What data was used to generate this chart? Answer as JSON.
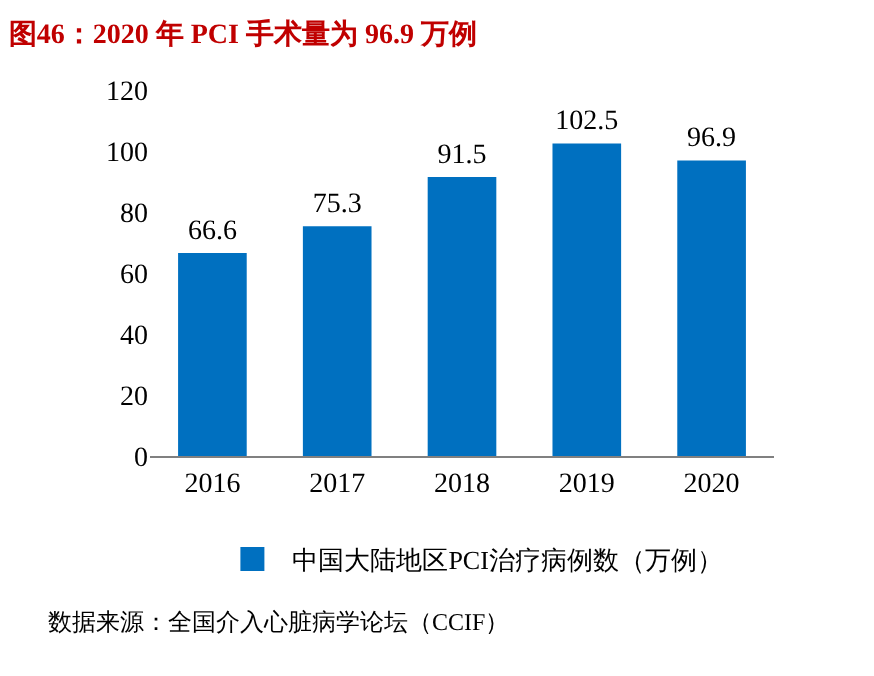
{
  "chart_data": {
    "type": "bar",
    "title": "图46：2020 年 PCI 手术量为 96.9 万例",
    "categories": [
      "2016",
      "2017",
      "2018",
      "2019",
      "2020"
    ],
    "series": [
      {
        "name": "中国大陆地区PCI治疗病例数（万例）",
        "color": "#0070c0",
        "values": [
          66.6,
          75.3,
          91.5,
          102.5,
          96.9
        ]
      }
    ],
    "ylim": [
      0,
      120
    ],
    "yticks": [
      0,
      20,
      40,
      60,
      80,
      100,
      120
    ],
    "grid": false,
    "legend": "bottom",
    "data_labels": true,
    "annotations": [
      "数据来源：全国介入心脏病学论坛（CCIF）"
    ]
  }
}
